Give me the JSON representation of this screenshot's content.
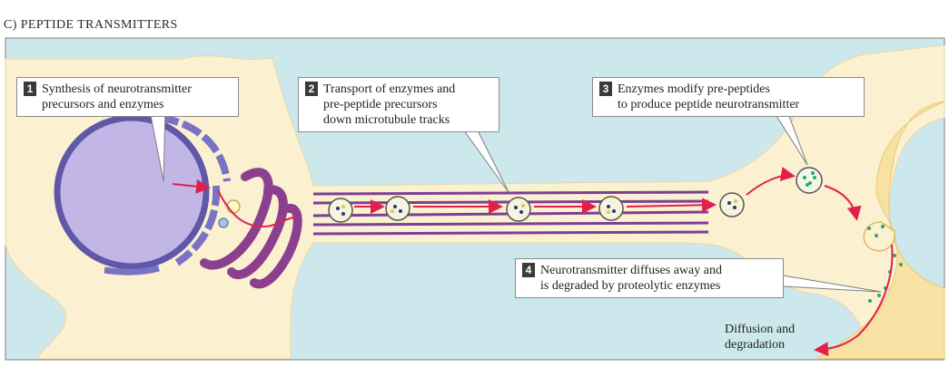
{
  "panel_title": "C) PEPTIDE TRANSMITTERS",
  "steps": [
    {
      "number": "1",
      "text": "Synthesis of neurotransmitter\nprecursors and enzymes"
    },
    {
      "number": "2",
      "text": "Transport of enzymes and\npre-peptide precursors\ndown microtubule tracks"
    },
    {
      "number": "3",
      "text": "Enzymes modify pre-peptides\nto produce peptide neurotransmitter"
    },
    {
      "number": "4",
      "text": "Neurotransmitter diffuses away and\nis degraded by proteolytic enzymes"
    }
  ],
  "end_label": "Diffusion and\ndegradation",
  "colors": {
    "background": "#cde8ec",
    "neuron": "#fbf0cf",
    "postsynaptic": "#f7e2a3",
    "nucleus": "#c2b6e6",
    "er": "#7a73c4",
    "golgi": "#8c3f8e",
    "microtubule": "#7c3f97",
    "arrow": "#e2204b"
  }
}
